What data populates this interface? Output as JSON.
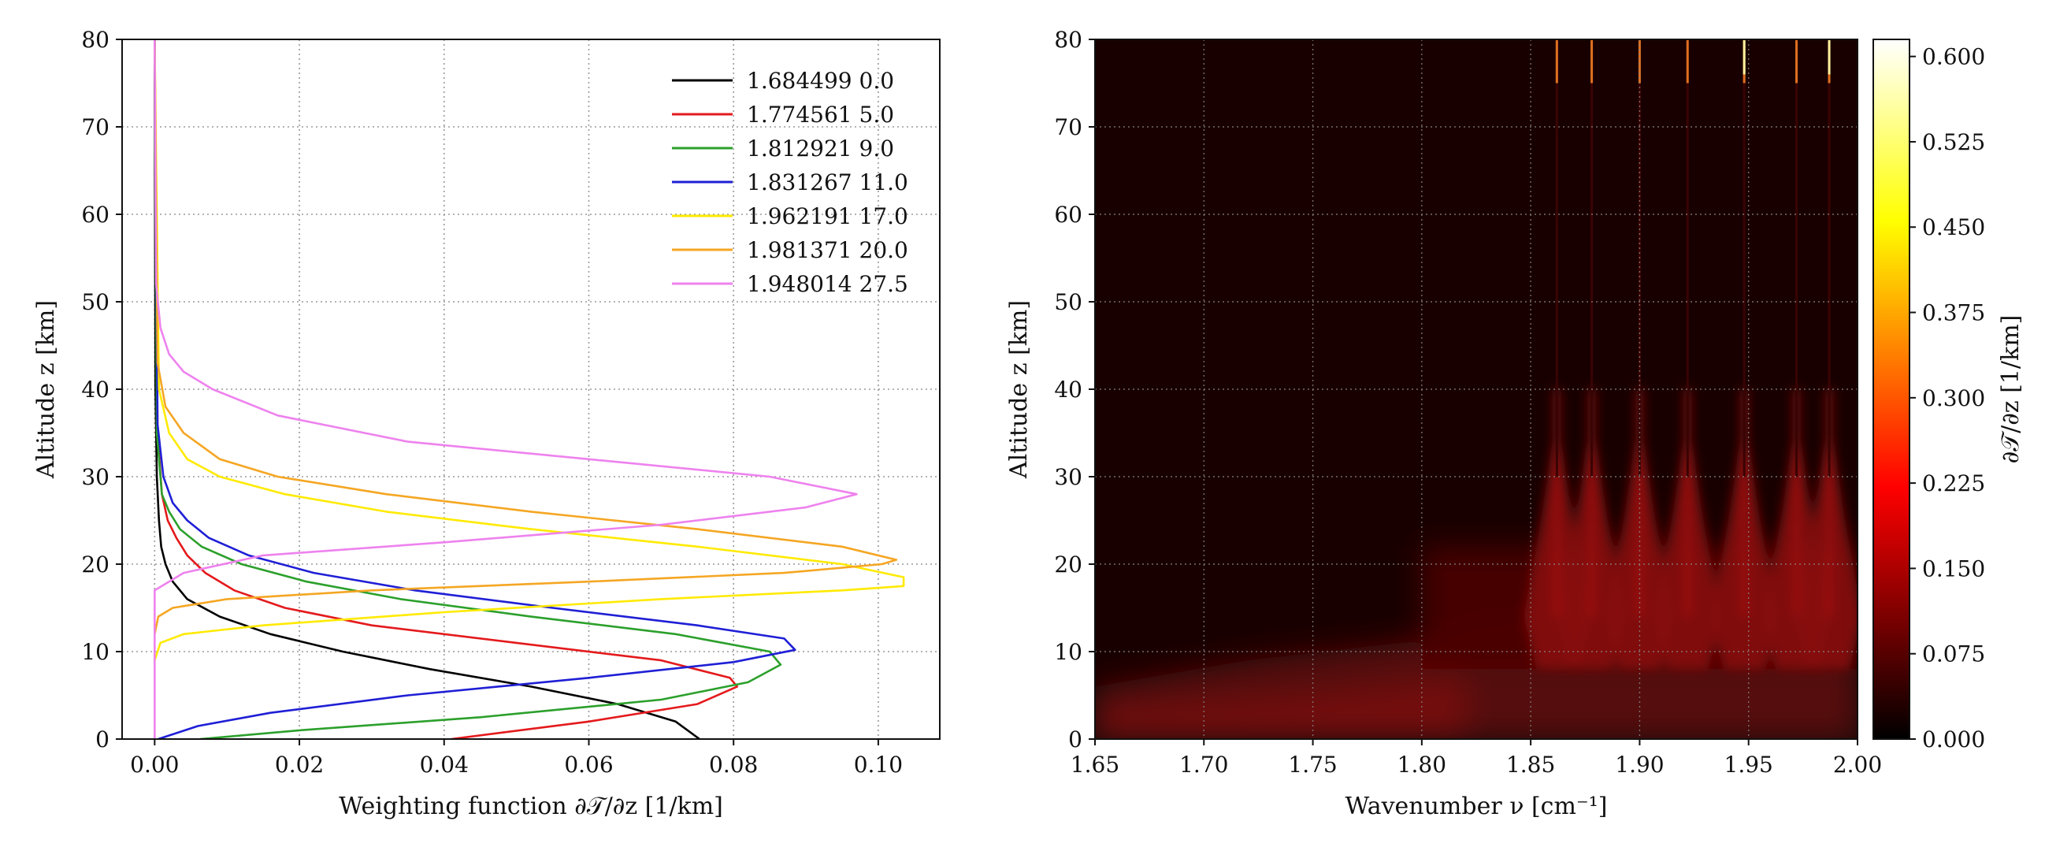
{
  "chart_data": [
    {
      "type": "line",
      "xlabel": "Weighting function ∂𝒯/∂z [1/km]",
      "ylabel": "Altitude z [km]",
      "xlim": [
        -0.0045,
        0.1085
      ],
      "ylim": [
        0,
        80
      ],
      "xticks": [
        0.0,
        0.02,
        0.04,
        0.06,
        0.08,
        0.1
      ],
      "xtick_labels": [
        "0.00",
        "0.02",
        "0.04",
        "0.06",
        "0.08",
        "0.10"
      ],
      "yticks": [
        0,
        10,
        20,
        30,
        40,
        50,
        60,
        70,
        80
      ],
      "ytick_labels": [
        "0",
        "10",
        "20",
        "30",
        "40",
        "50",
        "60",
        "70",
        "80"
      ],
      "grid": true,
      "legend_position": "top-right",
      "series": [
        {
          "name": "1.684499 0.0",
          "color": "#000000",
          "x": [
            0.0753,
            0.072,
            0.064,
            0.052,
            0.038,
            0.026,
            0.016,
            0.009,
            0.0045,
            0.0025,
            0.0015,
            0.0009,
            0.0006,
            0.0003,
            0.0001,
            0.0
          ],
          "y": [
            0,
            2,
            4,
            6,
            8,
            10,
            12,
            14,
            16,
            18,
            20,
            22,
            25,
            30,
            40,
            80
          ]
        },
        {
          "name": "1.774561 5.0",
          "color": "#e41a1c",
          "x": [
            0.041,
            0.06,
            0.075,
            0.0805,
            0.0795,
            0.07,
            0.05,
            0.03,
            0.018,
            0.011,
            0.007,
            0.0045,
            0.003,
            0.0018,
            0.001,
            0.0004,
            0.0
          ],
          "y": [
            0,
            2,
            4,
            6,
            7,
            9,
            11,
            13,
            15,
            17,
            19,
            21,
            23,
            25,
            28,
            35,
            80
          ]
        },
        {
          "name": "1.812921 9.0",
          "color": "#2ca02c",
          "x": [
            0.0063,
            0.02,
            0.045,
            0.07,
            0.082,
            0.0865,
            0.085,
            0.072,
            0.052,
            0.034,
            0.021,
            0.012,
            0.0065,
            0.0035,
            0.002,
            0.001,
            0.0003,
            0.0
          ],
          "y": [
            0,
            1,
            2.5,
            4.5,
            6.5,
            8.5,
            10,
            12,
            14,
            16,
            18,
            20,
            22,
            24,
            26,
            28,
            35,
            80
          ]
        },
        {
          "name": "1.831267 11.0",
          "color": "#1f1fd6",
          "x": [
            0.0005,
            0.006,
            0.016,
            0.035,
            0.06,
            0.08,
            0.0885,
            0.087,
            0.075,
            0.055,
            0.036,
            0.022,
            0.013,
            0.0075,
            0.0045,
            0.0025,
            0.0012,
            0.0004,
            0.0
          ],
          "y": [
            0,
            1.5,
            3,
            5,
            7,
            8.8,
            10.2,
            11.5,
            13,
            15,
            17,
            19,
            21,
            23,
            25,
            27,
            30,
            36,
            80
          ]
        },
        {
          "name": "1.962191 17.0",
          "color": "#ffea00",
          "x": [
            0.0,
            0.0008,
            0.004,
            0.015,
            0.04,
            0.07,
            0.095,
            0.1035,
            0.1035,
            0.095,
            0.075,
            0.052,
            0.032,
            0.018,
            0.009,
            0.0045,
            0.002,
            0.0006,
            0.0
          ],
          "y": [
            9,
            11,
            12,
            13,
            14.5,
            16,
            17,
            17.5,
            18.5,
            20,
            22,
            24,
            26,
            28,
            30,
            32,
            35,
            40,
            80
          ]
        },
        {
          "name": "1.981371 20.0",
          "color": "#f5a623",
          "x": [
            0.0,
            0.0005,
            0.0025,
            0.01,
            0.03,
            0.06,
            0.087,
            0.1005,
            0.1025,
            0.095,
            0.075,
            0.052,
            0.032,
            0.017,
            0.009,
            0.004,
            0.0015,
            0.0004,
            0.0
          ],
          "y": [
            12,
            14,
            15,
            16,
            17,
            18,
            19,
            20,
            20.5,
            22,
            24,
            26,
            28,
            30,
            32,
            35,
            38,
            43,
            80
          ]
        },
        {
          "name": "1.948014 27.5",
          "color": "#ee82ee",
          "x": [
            0.0,
            0.0,
            0.0,
            0.004,
            0.015,
            0.04,
            0.07,
            0.09,
            0.097,
            0.085,
            0.06,
            0.035,
            0.017,
            0.008,
            0.004,
            0.002,
            0.0008,
            0.0002,
            0.0
          ],
          "y": [
            0,
            15,
            17,
            19,
            21,
            22.5,
            24.5,
            26.5,
            28,
            30,
            32,
            34,
            37,
            40,
            42,
            44,
            47,
            52,
            80
          ]
        }
      ]
    },
    {
      "type": "heatmap",
      "xlabel": "Wavenumber ν [cm⁻¹]",
      "ylabel": "Altitude z [km]",
      "xlim": [
        1.65,
        2.0
      ],
      "ylim": [
        0,
        80
      ],
      "xticks": [
        1.65,
        1.7,
        1.75,
        1.8,
        1.85,
        1.9,
        1.95,
        2.0
      ],
      "xtick_labels": [
        "1.65",
        "1.70",
        "1.75",
        "1.80",
        "1.85",
        "1.90",
        "1.95",
        "2.00"
      ],
      "yticks": [
        0,
        10,
        20,
        30,
        40,
        50,
        60,
        70,
        80
      ],
      "ytick_labels": [
        "0",
        "10",
        "20",
        "30",
        "40",
        "50",
        "60",
        "70",
        "80"
      ],
      "grid": true,
      "colormap": "hot",
      "colorbar_label": "∂𝒯/∂z [1/km]",
      "colorbar_ticks": [
        0.0,
        0.075,
        0.15,
        0.225,
        0.3,
        0.375,
        0.45,
        0.525,
        0.6
      ],
      "colorbar_tick_labels": [
        "0.000",
        "0.075",
        "0.150",
        "0.225",
        "0.300",
        "0.375",
        "0.450",
        "0.525",
        "0.600"
      ],
      "colorbar_range": [
        0.0,
        0.615
      ],
      "absorption_lines_cm-1": [
        1.862,
        1.878,
        1.9,
        1.922,
        1.948,
        1.972,
        1.987
      ]
    }
  ]
}
